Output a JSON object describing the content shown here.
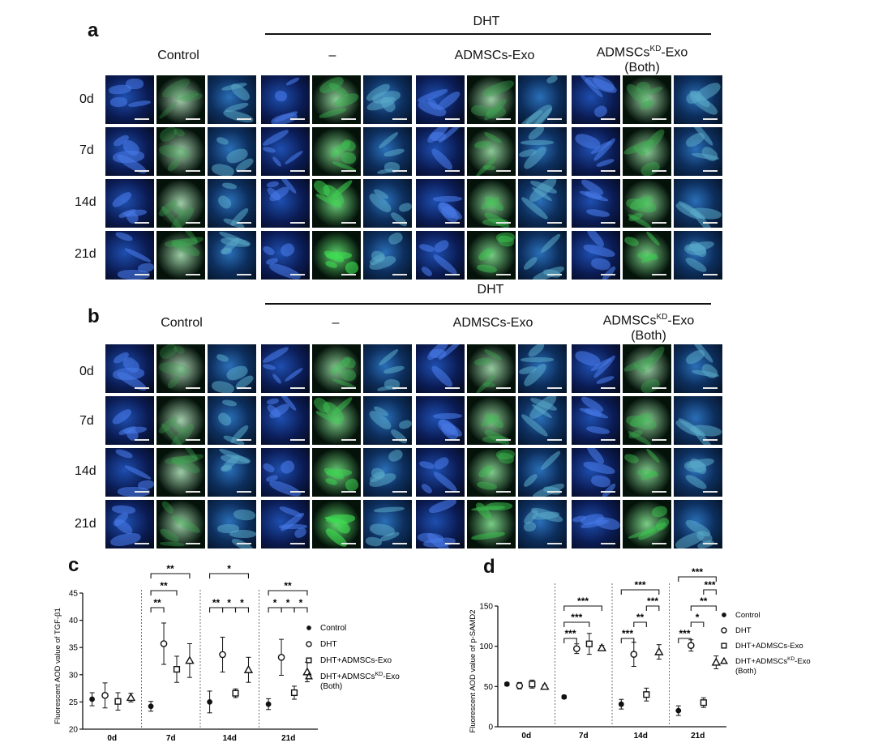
{
  "panel_a": {
    "label": "a",
    "dht_label": "DHT",
    "columns": [
      "Control",
      "–",
      "ADMSCs-Exo",
      "ADMSCs",
      "KD",
      "-Exo",
      "(Both)"
    ],
    "rows": [
      "0d",
      "7d",
      "14d",
      "21d"
    ]
  },
  "panel_b": {
    "label": "b",
    "dht_label": "DHT",
    "columns": [
      "Control",
      "–",
      "ADMSCs-Exo",
      "ADMSCs",
      "KD",
      "-Exo",
      "(Both)"
    ],
    "rows": [
      "0d",
      "7d",
      "14d",
      "21d"
    ]
  },
  "chart_data": [
    {
      "panel": "c",
      "type": "scatter",
      "ylabel": "Fluorescent AOD value of TGF-β1",
      "categories": [
        "0d",
        "7d",
        "14d",
        "21d"
      ],
      "ylim": [
        20,
        45
      ],
      "yticks": [
        20,
        25,
        30,
        35,
        40,
        45
      ],
      "series": [
        {
          "name": "Control",
          "marker": "filled-circle",
          "values": [
            25.5,
            24.2,
            25.0,
            24.6
          ],
          "err": [
            1.2,
            0.9,
            2.0,
            1.0
          ]
        },
        {
          "name": "DHT",
          "marker": "open-circle",
          "values": [
            26.2,
            35.7,
            33.7,
            33.2
          ],
          "err": [
            2.3,
            3.8,
            3.2,
            3.3
          ]
        },
        {
          "name": "DHT+ADMSCs-Exo",
          "marker": "open-square",
          "values": [
            25.1,
            31.0,
            26.6,
            26.7
          ],
          "err": [
            1.6,
            2.4,
            0.8,
            1.2
          ]
        },
        {
          "name": "DHT+ADMSCs^KD-Exo (Both)",
          "marker": "open-triangle",
          "values": [
            25.8,
            32.6,
            30.9,
            30.5
          ],
          "err": [
            0.8,
            3.1,
            2.3,
            1.8
          ]
        }
      ],
      "legend": [
        "Control",
        "DHT",
        "DHT+ADMSCs-Exo",
        "DHT+ADMSCs",
        "KD",
        "-Exo",
        "(Both)"
      ],
      "significance": [
        {
          "group": 1,
          "from": 0,
          "to": 1,
          "label": "**"
        },
        {
          "group": 1,
          "from": 0,
          "to": 2,
          "label": "**"
        },
        {
          "group": 1,
          "from": 0,
          "to": 3,
          "label": "**"
        },
        {
          "group": 2,
          "from": 0,
          "to": 1,
          "label": "**"
        },
        {
          "group": 2,
          "from": 1,
          "to": 2,
          "label": "*"
        },
        {
          "group": 2,
          "from": 2,
          "to": 3,
          "label": "*"
        },
        {
          "group": 2,
          "from": 0,
          "to": 3,
          "label": "*"
        },
        {
          "group": 3,
          "from": 0,
          "to": 1,
          "label": "*"
        },
        {
          "group": 3,
          "from": 1,
          "to": 2,
          "label": "*"
        },
        {
          "group": 3,
          "from": 2,
          "to": 3,
          "label": "*"
        },
        {
          "group": 3,
          "from": 0,
          "to": 3,
          "label": "**"
        }
      ]
    },
    {
      "panel": "d",
      "type": "scatter",
      "ylabel": "Fluorescent AOD value of p-SAMD2",
      "categories": [
        "0d",
        "7d",
        "14d",
        "21d"
      ],
      "ylim": [
        0,
        150
      ],
      "yticks": [
        0,
        50,
        100,
        150
      ],
      "series": [
        {
          "name": "Control",
          "marker": "filled-circle",
          "values": [
            53,
            37,
            28,
            20
          ],
          "err": [
            2,
            2,
            6,
            6
          ]
        },
        {
          "name": "DHT",
          "marker": "open-circle",
          "values": [
            51,
            97,
            90,
            101
          ],
          "err": [
            4,
            6,
            15,
            7
          ]
        },
        {
          "name": "DHT+ADMSCs-Exo",
          "marker": "open-square",
          "values": [
            53,
            103,
            40,
            30
          ],
          "err": [
            5,
            13,
            8,
            6
          ]
        },
        {
          "name": "DHT+ADMSCs^KD-Exo (Both)",
          "marker": "open-triangle",
          "values": [
            50,
            98,
            93,
            80
          ],
          "err": [
            2,
            3,
            9,
            8
          ]
        }
      ],
      "legend": [
        "Control",
        "DHT",
        "DHT+ADMSCs-Exo",
        "DHT+ADMSCs",
        "KD",
        "-Exo",
        "(Both)"
      ],
      "significance": [
        {
          "group": 1,
          "from": 0,
          "to": 1,
          "label": "***"
        },
        {
          "group": 1,
          "from": 0,
          "to": 2,
          "label": "***"
        },
        {
          "group": 1,
          "from": 0,
          "to": 3,
          "label": "***"
        },
        {
          "group": 2,
          "from": 0,
          "to": 1,
          "label": "***"
        },
        {
          "group": 2,
          "from": 1,
          "to": 2,
          "label": "**"
        },
        {
          "group": 2,
          "from": 2,
          "to": 3,
          "label": "***"
        },
        {
          "group": 2,
          "from": 0,
          "to": 3,
          "label": "***"
        },
        {
          "group": 3,
          "from": 0,
          "to": 1,
          "label": "***"
        },
        {
          "group": 3,
          "from": 1,
          "to": 2,
          "label": "*"
        },
        {
          "group": 3,
          "from": 1,
          "to": 3,
          "label": "**"
        },
        {
          "group": 3,
          "from": 2,
          "to": 3,
          "label": "***"
        },
        {
          "group": 3,
          "from": 0,
          "to": 3,
          "label": "***"
        }
      ]
    }
  ]
}
